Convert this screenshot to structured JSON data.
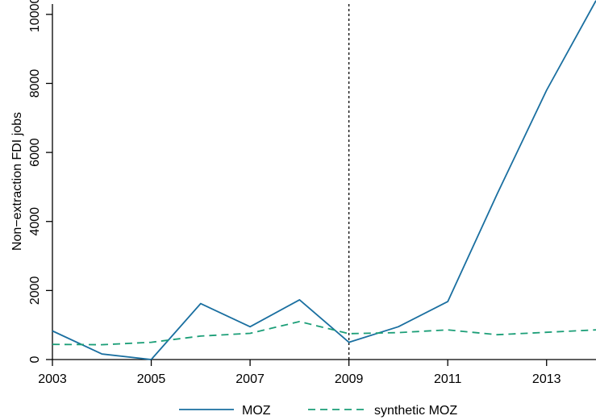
{
  "chart_data": {
    "type": "line",
    "title": "",
    "xlabel": "",
    "ylabel": "Non−extraction FDI jobs",
    "xlim": [
      2003,
      2014
    ],
    "ylim": [
      0,
      10300
    ],
    "xticks": [
      2003,
      2005,
      2007,
      2009,
      2011,
      2013
    ],
    "yticks": [
      0,
      2000,
      4000,
      6000,
      8000,
      10000
    ],
    "grid": false,
    "legend_position": "bottom",
    "reference_line": {
      "x": 2009,
      "style": "dotted",
      "color": "#000000"
    },
    "x": [
      2003,
      2004,
      2005,
      2006,
      2007,
      2008,
      2009,
      2010,
      2011,
      2012,
      2013,
      2014
    ],
    "series": [
      {
        "name": "MOZ",
        "color": "#1a6fa0",
        "style": "solid",
        "values": [
          830,
          160,
          0,
          1620,
          950,
          1730,
          500,
          950,
          1680,
          4800,
          7800,
          10400
        ]
      },
      {
        "name": "synthetic MOZ",
        "color": "#1b9e77",
        "style": "dashed",
        "values": [
          440,
          430,
          500,
          680,
          760,
          1100,
          750,
          780,
          860,
          720,
          790,
          860
        ]
      }
    ]
  }
}
